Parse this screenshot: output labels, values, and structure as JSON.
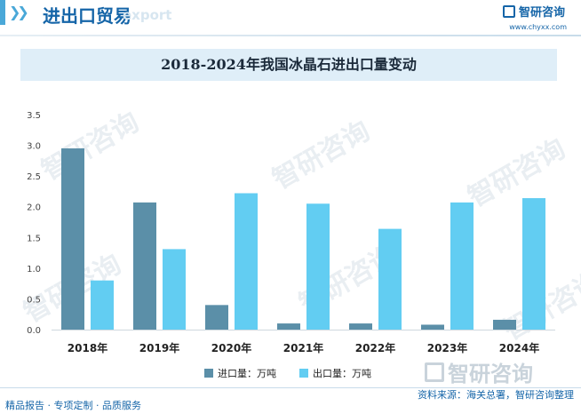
{
  "header": {
    "title": "进出口贸易",
    "subtitle": "export",
    "brand": "智研咨询",
    "site": "www.chyxx.com"
  },
  "watermark": {
    "text": "智研咨询"
  },
  "chart_data": {
    "type": "bar",
    "title": "2018-2024年我国冰晶石进出口量变动",
    "categories": [
      "2018年",
      "2019年",
      "2020年",
      "2021年",
      "2022年",
      "2023年",
      "2024年"
    ],
    "series": [
      {
        "name": "进口量：万吨",
        "color": "#5b8fa8",
        "values": [
          2.95,
          2.07,
          0.4,
          0.1,
          0.1,
          0.08,
          0.16
        ]
      },
      {
        "name": "出口量：万吨",
        "color": "#62cdf2",
        "values": [
          0.8,
          1.31,
          2.22,
          2.05,
          1.64,
          2.07,
          2.14
        ]
      }
    ],
    "ylim": [
      0,
      3.5
    ],
    "yticks": [
      "0.0",
      "0.5",
      "1.0",
      "1.5",
      "2.0",
      "2.5",
      "3.0",
      "3.5"
    ],
    "grid": false,
    "legend_position": "bottom"
  },
  "footer": {
    "left": "精品报告 · 专项定制 · 品质服务",
    "source": "资料来源：海关总署，智研咨询整理"
  }
}
